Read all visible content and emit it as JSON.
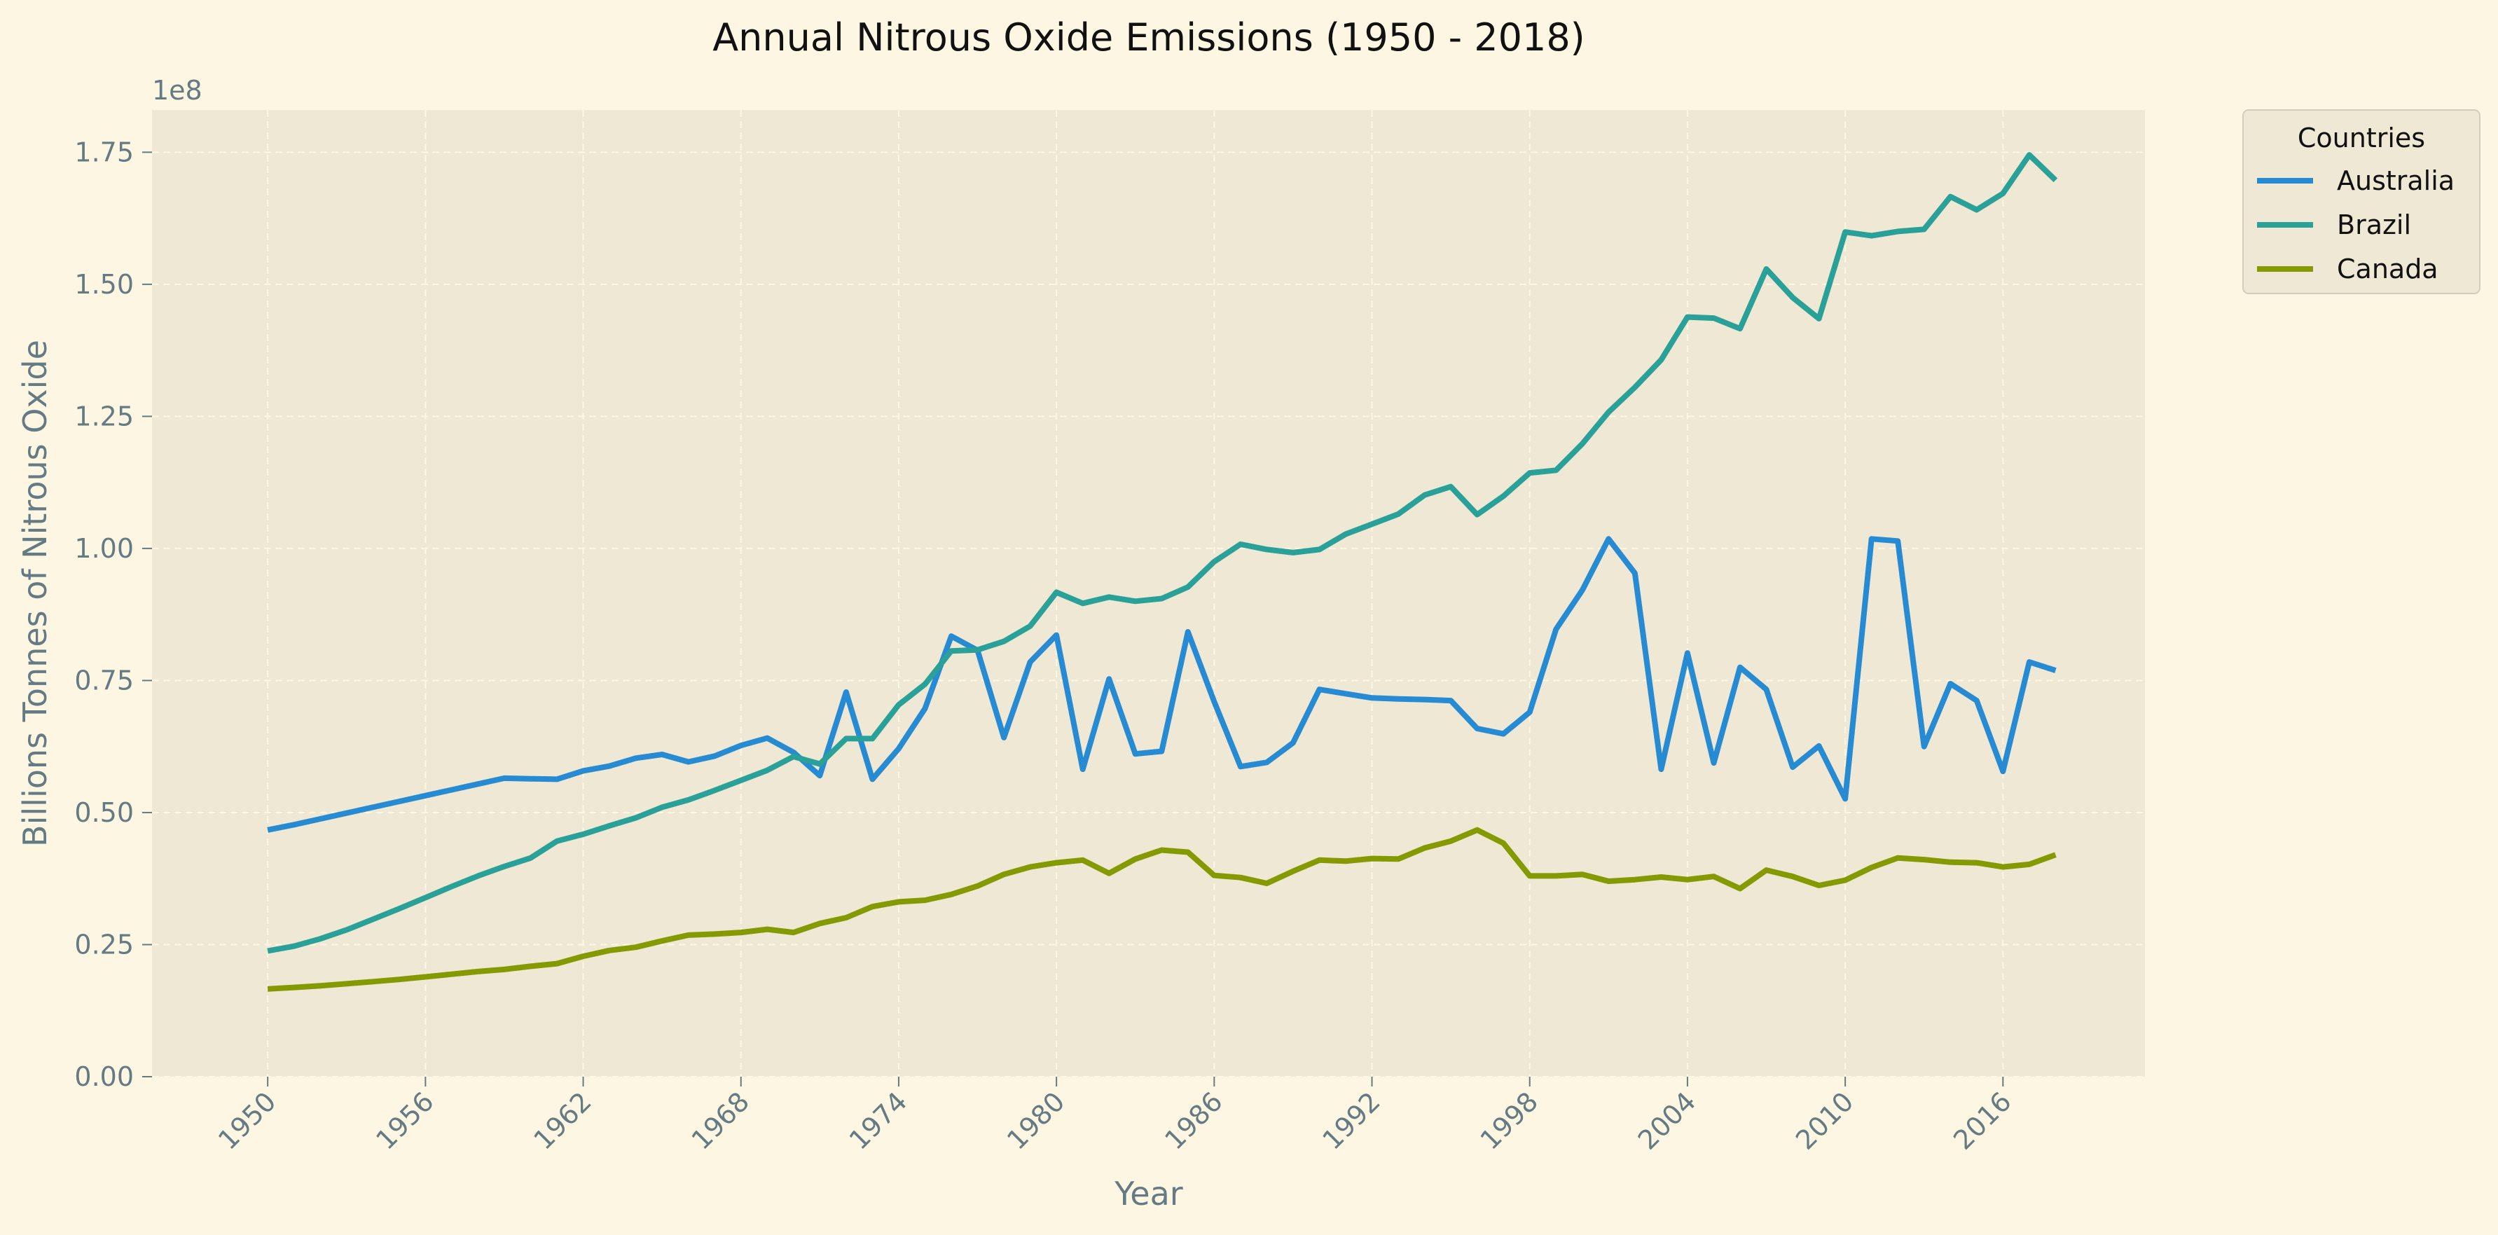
{
  "chart_data": {
    "type": "line",
    "title": "Annual Nitrous Oxide Emissions (1950 - 2018)",
    "xlabel": "Year",
    "ylabel": "Billions Tonnes of Nitrous Oxide",
    "y_offset_label": "1e8",
    "xlim": [
      1945.6,
      2021.4
    ],
    "ylim": [
      0,
      1.83
    ],
    "x_ticks": [
      1950,
      1956,
      1962,
      1968,
      1974,
      1980,
      1986,
      1992,
      1998,
      2004,
      2010,
      2016
    ],
    "x_tick_labels": [
      "1950",
      "1956",
      "1962",
      "1968",
      "1974",
      "1980",
      "1986",
      "1992",
      "1998",
      "2004",
      "2010",
      "2016"
    ],
    "y_ticks": [
      0,
      0.25,
      0.5,
      0.75,
      1.0,
      1.25,
      1.5,
      1.75
    ],
    "y_tick_labels": [
      "0.00",
      "0.25",
      "0.50",
      "0.75",
      "1.00",
      "1.25",
      "1.50",
      "1.75"
    ],
    "grid": true,
    "legend": {
      "title": "Countries",
      "placement": "outside upper right"
    },
    "x": [
      1950,
      1951,
      1952,
      1953,
      1954,
      1955,
      1956,
      1957,
      1958,
      1959,
      1960,
      1961,
      1962,
      1963,
      1964,
      1965,
      1966,
      1967,
      1968,
      1969,
      1970,
      1971,
      1972,
      1973,
      1974,
      1975,
      1976,
      1977,
      1978,
      1979,
      1980,
      1981,
      1982,
      1983,
      1984,
      1985,
      1986,
      1987,
      1988,
      1989,
      1990,
      1991,
      1992,
      1993,
      1994,
      1995,
      1996,
      1997,
      1998,
      1999,
      2000,
      2001,
      2002,
      2003,
      2004,
      2005,
      2006,
      2007,
      2008,
      2009,
      2010,
      2011,
      2012,
      2013,
      2014,
      2015,
      2016,
      2017,
      2018
    ],
    "series": [
      {
        "name": "Australia",
        "color": "#268bd2",
        "values": [
          0.467,
          0.477,
          0.488,
          0.499,
          0.51,
          0.521,
          0.532,
          0.543,
          0.554,
          0.565,
          0.564,
          0.563,
          0.579,
          0.588,
          0.603,
          0.61,
          0.596,
          0.607,
          0.627,
          0.641,
          0.614,
          0.57,
          0.728,
          0.563,
          0.621,
          0.697,
          0.834,
          0.807,
          0.642,
          0.785,
          0.836,
          0.582,
          0.753,
          0.611,
          0.616,
          0.842,
          0.71,
          0.587,
          0.595,
          0.632,
          0.733,
          0.725,
          0.717,
          0.715,
          0.714,
          0.712,
          0.659,
          0.649,
          0.69,
          0.847,
          0.921,
          1.018,
          0.953,
          0.582,
          0.802,
          0.594,
          0.775,
          0.733,
          0.586,
          0.626,
          0.526,
          1.018,
          1.014,
          0.625,
          0.744,
          0.712,
          0.578,
          0.785,
          0.769
        ]
      },
      {
        "name": "Brazil",
        "color": "#2aa198",
        "values": [
          0.238,
          0.247,
          0.261,
          0.278,
          0.298,
          0.318,
          0.339,
          0.36,
          0.38,
          0.398,
          0.414,
          0.446,
          0.459,
          0.475,
          0.49,
          0.51,
          0.524,
          0.542,
          0.561,
          0.58,
          0.606,
          0.592,
          0.64,
          0.64,
          0.704,
          0.743,
          0.806,
          0.808,
          0.824,
          0.853,
          0.917,
          0.896,
          0.908,
          0.9,
          0.905,
          0.927,
          0.975,
          1.008,
          0.998,
          0.992,
          0.998,
          1.027,
          1.046,
          1.065,
          1.101,
          1.117,
          1.064,
          1.099,
          1.143,
          1.148,
          1.198,
          1.258,
          1.305,
          1.357,
          1.438,
          1.436,
          1.416,
          1.529,
          1.475,
          1.435,
          1.599,
          1.592,
          1.6,
          1.604,
          1.666,
          1.641,
          1.672,
          1.745,
          1.697
        ]
      },
      {
        "name": "Canada",
        "color": "#859900",
        "values": [
          0.166,
          0.169,
          0.172,
          0.176,
          0.18,
          0.184,
          0.189,
          0.194,
          0.199,
          0.203,
          0.209,
          0.214,
          0.228,
          0.239,
          0.245,
          0.257,
          0.268,
          0.27,
          0.273,
          0.279,
          0.273,
          0.29,
          0.301,
          0.322,
          0.331,
          0.334,
          0.345,
          0.361,
          0.383,
          0.397,
          0.405,
          0.41,
          0.385,
          0.412,
          0.429,
          0.425,
          0.381,
          0.377,
          0.366,
          0.389,
          0.41,
          0.408,
          0.413,
          0.412,
          0.433,
          0.446,
          0.467,
          0.442,
          0.38,
          0.38,
          0.383,
          0.37,
          0.373,
          0.378,
          0.373,
          0.379,
          0.356,
          0.391,
          0.379,
          0.362,
          0.372,
          0.396,
          0.414,
          0.411,
          0.406,
          0.405,
          0.397,
          0.402,
          0.42
        ]
      }
    ]
  }
}
